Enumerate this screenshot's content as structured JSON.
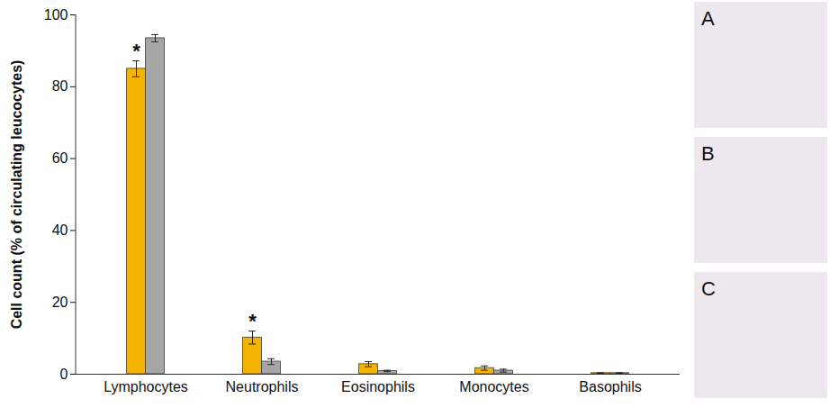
{
  "chart_data": {
    "type": "bar",
    "ylabel": "Cell count (% of circulating leucocytes)",
    "categories": [
      "Lymphocytes",
      "Neutrophils",
      "Eosinophils",
      "Monocytes",
      "Basophils"
    ],
    "series": [
      {
        "color": "#f5b400",
        "values": [
          85.0,
          10.2,
          2.8,
          1.7,
          0.3
        ],
        "errors": [
          2.2,
          1.8,
          0.7,
          0.6,
          0.1
        ]
      },
      {
        "color": "#a6a6a6",
        "values": [
          93.5,
          3.5,
          0.9,
          1.0,
          0.3
        ],
        "errors": [
          1.0,
          0.8,
          0.2,
          0.4,
          0.1
        ]
      }
    ],
    "annotations": [
      {
        "text": "*",
        "category": "Lymphocytes",
        "series": 0
      },
      {
        "text": "*",
        "category": "Neutrophils",
        "series": 0
      }
    ],
    "ylim": [
      0,
      100
    ],
    "yticks": [
      0,
      20,
      40,
      60,
      80,
      100
    ],
    "grid": false
  },
  "panels": [
    {
      "label": "A"
    },
    {
      "label": "B"
    },
    {
      "label": "C"
    }
  ]
}
